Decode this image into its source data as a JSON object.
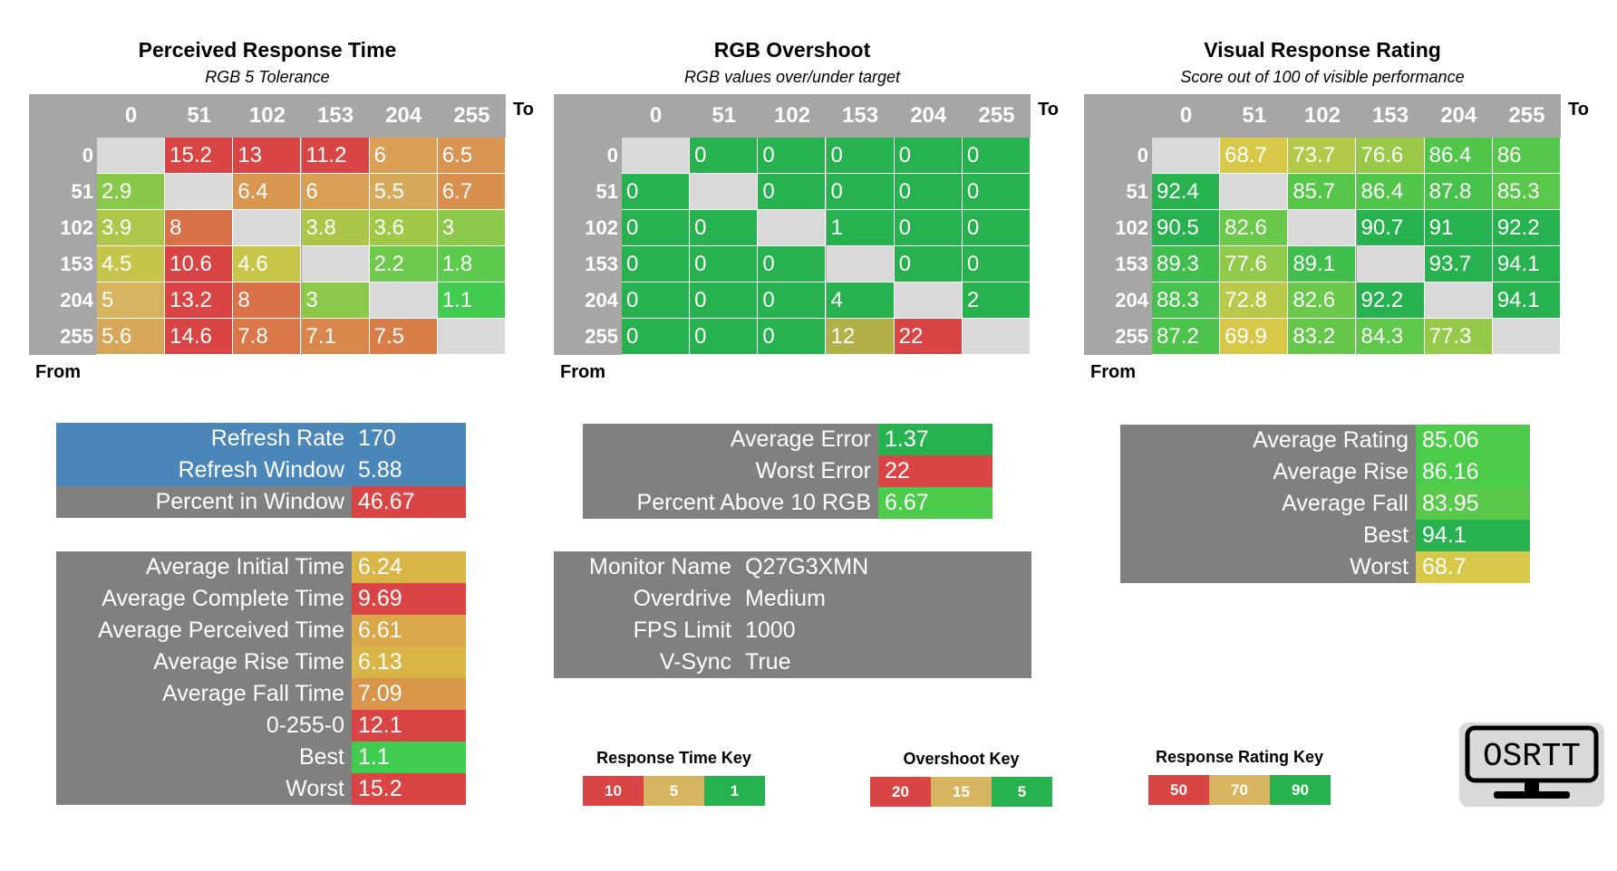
{
  "colors": {
    "header_gray": "#a6a6a6",
    "empty_cell": "#d9d9d9",
    "panel_gray": "#808080",
    "blue": "#4a86b8",
    "red": "#d94545",
    "green": "#27b24f",
    "bright_green": "#3fcc50"
  },
  "heatmaps": [
    {
      "title": "Perceived Response Time",
      "subtitle": "RGB 5 Tolerance",
      "to_label": "To",
      "from_label": "From",
      "scale": "response_time",
      "columns": [
        "0",
        "51",
        "102",
        "153",
        "204",
        "255"
      ],
      "rows": [
        "0",
        "51",
        "102",
        "153",
        "204",
        "255"
      ],
      "values": [
        [
          null,
          "15.2",
          "13",
          "11.2",
          "6",
          "6.5"
        ],
        [
          "2.9",
          null,
          "6.4",
          "6",
          "5.5",
          "6.7"
        ],
        [
          "3.9",
          "8",
          null,
          "3.8",
          "3.6",
          "3"
        ],
        [
          "4.5",
          "10.6",
          "4.6",
          null,
          "2.2",
          "1.8"
        ],
        [
          "5",
          "13.2",
          "8",
          "3",
          null,
          "1.1"
        ],
        [
          "5.6",
          "14.6",
          "7.8",
          "7.1",
          "7.5",
          null
        ]
      ]
    },
    {
      "title": "RGB Overshoot",
      "subtitle": "RGB values over/under target",
      "to_label": "To",
      "from_label": "From",
      "scale": "overshoot",
      "columns": [
        "0",
        "51",
        "102",
        "153",
        "204",
        "255"
      ],
      "rows": [
        "0",
        "51",
        "102",
        "153",
        "204",
        "255"
      ],
      "values": [
        [
          null,
          "0",
          "0",
          "0",
          "0",
          "0"
        ],
        [
          "0",
          null,
          "0",
          "0",
          "0",
          "0"
        ],
        [
          "0",
          "0",
          null,
          "1",
          "0",
          "0"
        ],
        [
          "0",
          "0",
          "0",
          null,
          "0",
          "0"
        ],
        [
          "0",
          "0",
          "0",
          "4",
          null,
          "2"
        ],
        [
          "0",
          "0",
          "0",
          "12",
          "22",
          null
        ]
      ]
    },
    {
      "title": "Visual Response Rating",
      "subtitle": "Score out of 100 of visible performance",
      "to_label": "To",
      "from_label": "From",
      "scale": "rating",
      "columns": [
        "0",
        "51",
        "102",
        "153",
        "204",
        "255"
      ],
      "rows": [
        "0",
        "51",
        "102",
        "153",
        "204",
        "255"
      ],
      "values": [
        [
          null,
          "68.7",
          "73.7",
          "76.6",
          "86.4",
          "86"
        ],
        [
          "92.4",
          null,
          "85.7",
          "86.4",
          "87.8",
          "85.3"
        ],
        [
          "90.5",
          "82.6",
          null,
          "90.7",
          "91",
          "92.2"
        ],
        [
          "89.3",
          "77.6",
          "89.1",
          null,
          "93.7",
          "94.1"
        ],
        [
          "88.3",
          "72.8",
          "82.6",
          "92.2",
          null,
          "94.1"
        ],
        [
          "87.2",
          "69.9",
          "83.2",
          "84.3",
          "77.3",
          null
        ]
      ]
    }
  ],
  "refresh_panel": [
    {
      "label": "Refresh Rate",
      "value": "170",
      "label_color": "#4a86b8",
      "value_color": "#4a86b8"
    },
    {
      "label": "Refresh Window",
      "value": "5.88",
      "label_color": "#4a86b8",
      "value_color": "#4a86b8"
    },
    {
      "label": "Percent in Window",
      "value": "46.67",
      "label_color": "#808080",
      "value_color": "#d94545"
    }
  ],
  "time_panel": [
    {
      "label": "Average Initial Time",
      "value": "6.24",
      "value_color": "#d9b548"
    },
    {
      "label": "Average Complete Time",
      "value": "9.69",
      "value_color": "#d94545"
    },
    {
      "label": "Average Perceived Time",
      "value": "6.61",
      "value_color": "#d9a84a"
    },
    {
      "label": "Average Rise Time",
      "value": "6.13",
      "value_color": "#d9b548"
    },
    {
      "label": "Average Fall Time",
      "value": "7.09",
      "value_color": "#d9964a"
    },
    {
      "label": "0-255-0",
      "value": "12.1",
      "value_color": "#d94545"
    },
    {
      "label": "Best",
      "value": "1.1",
      "value_color": "#3fcc50"
    },
    {
      "label": "Worst",
      "value": "15.2",
      "value_color": "#d94545"
    }
  ],
  "error_panel": [
    {
      "label": "Average Error",
      "value": "1.37",
      "value_color": "#27b24f"
    },
    {
      "label": "Worst Error",
      "value": "22",
      "value_color": "#d94545"
    },
    {
      "label": "Percent Above 10 RGB",
      "value": "6.67",
      "value_color": "#4ccc4a"
    }
  ],
  "monitor_panel": [
    {
      "label": "Monitor Name",
      "value": "Q27G3XMN"
    },
    {
      "label": "Overdrive",
      "value": "Medium"
    },
    {
      "label": "FPS Limit",
      "value": "1000"
    },
    {
      "label": "V-Sync",
      "value": "True"
    }
  ],
  "rating_panel": [
    {
      "label": "Average Rating",
      "value": "85.06",
      "value_color": "#4ccc4a"
    },
    {
      "label": "Average Rise",
      "value": "86.16",
      "value_color": "#4ccc4a"
    },
    {
      "label": "Average Fall",
      "value": "83.95",
      "value_color": "#5ac84a"
    },
    {
      "label": "Best",
      "value": "94.1",
      "value_color": "#27b24f"
    },
    {
      "label": "Worst",
      "value": "68.7",
      "value_color": "#d8c84a"
    }
  ],
  "keys": [
    {
      "title": "Response Time Key",
      "items": [
        {
          "label": "10",
          "color": "#d94545"
        },
        {
          "label": "5",
          "color": "#d6b460"
        },
        {
          "label": "1",
          "color": "#27b24f"
        }
      ]
    },
    {
      "title": "Overshoot Key",
      "items": [
        {
          "label": "20",
          "color": "#d94545"
        },
        {
          "label": "15",
          "color": "#d6b460"
        },
        {
          "label": "5",
          "color": "#27b24f"
        }
      ]
    },
    {
      "title": "Response Rating Key",
      "items": [
        {
          "label": "50",
          "color": "#d94545"
        },
        {
          "label": "70",
          "color": "#d6b460"
        },
        {
          "label": "90",
          "color": "#27b24f"
        }
      ]
    }
  ],
  "logo": {
    "text": "OSRTT",
    "icon": "monitor-icon"
  },
  "chart_data": [
    {
      "type": "heatmap",
      "title": "Perceived Response Time",
      "subtitle": "RGB 5 Tolerance",
      "xlabel": "To",
      "ylabel": "From",
      "x": [
        0,
        51,
        102,
        153,
        204,
        255
      ],
      "y": [
        0,
        51,
        102,
        153,
        204,
        255
      ],
      "values": [
        [
          null,
          15.2,
          13,
          11.2,
          6,
          6.5
        ],
        [
          2.9,
          null,
          6.4,
          6,
          5.5,
          6.7
        ],
        [
          3.9,
          8,
          null,
          3.8,
          3.6,
          3
        ],
        [
          4.5,
          10.6,
          4.6,
          null,
          2.2,
          1.8
        ],
        [
          5,
          13.2,
          8,
          3,
          null,
          1.1
        ],
        [
          5.6,
          14.6,
          7.8,
          7.1,
          7.5,
          null
        ]
      ]
    },
    {
      "type": "heatmap",
      "title": "RGB Overshoot",
      "subtitle": "RGB values over/under target",
      "xlabel": "To",
      "ylabel": "From",
      "x": [
        0,
        51,
        102,
        153,
        204,
        255
      ],
      "y": [
        0,
        51,
        102,
        153,
        204,
        255
      ],
      "values": [
        [
          null,
          0,
          0,
          0,
          0,
          0
        ],
        [
          0,
          null,
          0,
          0,
          0,
          0
        ],
        [
          0,
          0,
          null,
          1,
          0,
          0
        ],
        [
          0,
          0,
          0,
          null,
          0,
          0
        ],
        [
          0,
          0,
          0,
          4,
          null,
          2
        ],
        [
          0,
          0,
          0,
          12,
          22,
          null
        ]
      ]
    },
    {
      "type": "heatmap",
      "title": "Visual Response Rating",
      "subtitle": "Score out of 100 of visible performance",
      "xlabel": "To",
      "ylabel": "From",
      "x": [
        0,
        51,
        102,
        153,
        204,
        255
      ],
      "y": [
        0,
        51,
        102,
        153,
        204,
        255
      ],
      "values": [
        [
          null,
          68.7,
          73.7,
          76.6,
          86.4,
          86
        ],
        [
          92.4,
          null,
          85.7,
          86.4,
          87.8,
          85.3
        ],
        [
          90.5,
          82.6,
          null,
          90.7,
          91,
          92.2
        ],
        [
          89.3,
          77.6,
          89.1,
          null,
          93.7,
          94.1
        ],
        [
          88.3,
          72.8,
          82.6,
          92.2,
          null,
          94.1
        ],
        [
          87.2,
          69.9,
          83.2,
          84.3,
          77.3,
          null
        ]
      ]
    }
  ]
}
